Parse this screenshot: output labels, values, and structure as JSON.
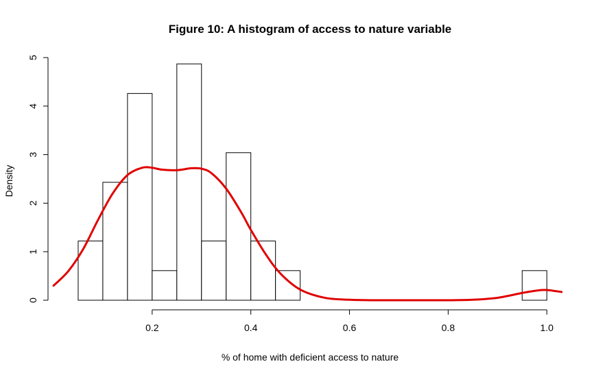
{
  "chart_data": {
    "type": "bar",
    "title": "Figure 10: A histogram of access to nature variable",
    "xlabel": "% of home with deficient access to nature",
    "ylabel": "Density",
    "xlim": [
      0.0,
      1.04
    ],
    "ylim": [
      0,
      5
    ],
    "x_ticks": [
      0.2,
      0.4,
      0.6,
      0.8,
      1.0
    ],
    "x_tick_labels": [
      "0.2",
      "0.4",
      "0.6",
      "0.8",
      "1.0"
    ],
    "y_ticks": [
      0,
      1,
      2,
      3,
      4,
      5
    ],
    "y_tick_labels": [
      "0",
      "1",
      "2",
      "3",
      "4",
      "5"
    ],
    "bin_width": 0.05,
    "bins": [
      {
        "start": 0.05,
        "end": 0.1,
        "density": 1.22
      },
      {
        "start": 0.1,
        "end": 0.15,
        "density": 2.43
      },
      {
        "start": 0.15,
        "end": 0.2,
        "density": 4.26
      },
      {
        "start": 0.2,
        "end": 0.25,
        "density": 0.61
      },
      {
        "start": 0.25,
        "end": 0.3,
        "density": 4.87
      },
      {
        "start": 0.3,
        "end": 0.35,
        "density": 1.22
      },
      {
        "start": 0.35,
        "end": 0.4,
        "density": 3.04
      },
      {
        "start": 0.4,
        "end": 0.45,
        "density": 1.22
      },
      {
        "start": 0.45,
        "end": 0.5,
        "density": 0.61
      },
      {
        "start": 0.95,
        "end": 1.0,
        "density": 0.61
      }
    ],
    "density_curve": {
      "color": "#e00000",
      "x": [
        0.0,
        0.03,
        0.06,
        0.09,
        0.12,
        0.15,
        0.18,
        0.2,
        0.22,
        0.25,
        0.28,
        0.3,
        0.32,
        0.35,
        0.38,
        0.4,
        0.43,
        0.46,
        0.5,
        0.55,
        0.6,
        0.65,
        0.7,
        0.75,
        0.8,
        0.85,
        0.9,
        0.95,
        0.98,
        1.0,
        1.03
      ],
      "y": [
        0.3,
        0.6,
        1.05,
        1.65,
        2.2,
        2.58,
        2.73,
        2.73,
        2.69,
        2.68,
        2.72,
        2.71,
        2.62,
        2.3,
        1.82,
        1.45,
        0.95,
        0.55,
        0.22,
        0.05,
        0.01,
        0.0,
        0.0,
        0.0,
        0.0,
        0.01,
        0.05,
        0.15,
        0.2,
        0.21,
        0.17
      ]
    }
  }
}
